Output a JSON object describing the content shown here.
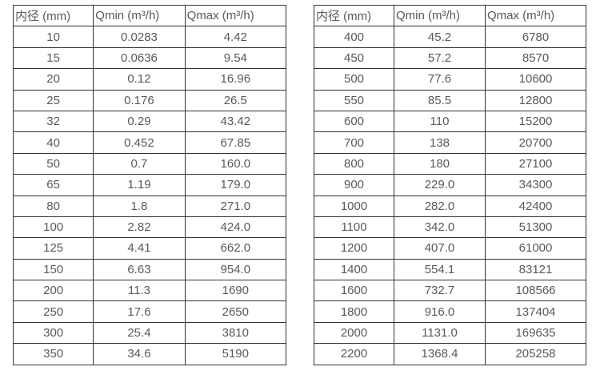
{
  "theme": {
    "background": "#ffffff",
    "border_color": "#333333",
    "text_color": "#595959"
  },
  "tables": [
    {
      "name": "small-diameters",
      "headers": [
        "内径 (mm)",
        "Qmin (m³/h)",
        "Qmax (m³/h)"
      ],
      "rows": [
        [
          "10",
          "0.0283",
          "4.42"
        ],
        [
          "15",
          "0.0636",
          "9.54"
        ],
        [
          "20",
          "0.12",
          "16.96"
        ],
        [
          "25",
          "0.176",
          "26.5"
        ],
        [
          "32",
          "0.29",
          "43.42"
        ],
        [
          "40",
          "0.452",
          "67.85"
        ],
        [
          "50",
          "0.7",
          "160.0"
        ],
        [
          "65",
          "1.19",
          "179.0"
        ],
        [
          "80",
          "1.8",
          "271.0"
        ],
        [
          "100",
          "2.82",
          "424.0"
        ],
        [
          "125",
          "4.41",
          "662.0"
        ],
        [
          "150",
          "6.63",
          "954.0"
        ],
        [
          "200",
          "11.3",
          "1690"
        ],
        [
          "250",
          "17.6",
          "2650"
        ],
        [
          "300",
          "25.4",
          "3810"
        ],
        [
          "350",
          "34.6",
          "5190"
        ]
      ]
    },
    {
      "name": "large-diameters",
      "headers": [
        "内径 (mm)",
        "Qmin (m³/h)",
        "Qmax (m³/h)"
      ],
      "rows": [
        [
          "400",
          "45.2",
          "6780"
        ],
        [
          "450",
          "57.2",
          "8570"
        ],
        [
          "500",
          "77.6",
          "10600"
        ],
        [
          "550",
          "85.5",
          "12800"
        ],
        [
          "600",
          "110",
          "15200"
        ],
        [
          "700",
          "138",
          "20700"
        ],
        [
          "800",
          "180",
          "27100"
        ],
        [
          "900",
          "229.0",
          "34300"
        ],
        [
          "1000",
          "282.0",
          "42400"
        ],
        [
          "1100",
          "342.0",
          "51300"
        ],
        [
          "1200",
          "407.0",
          "61000"
        ],
        [
          "1400",
          "554.1",
          "83121"
        ],
        [
          "1600",
          "732.7",
          "108566"
        ],
        [
          "1800",
          "916.0",
          "137404"
        ],
        [
          "2000",
          "1131.0",
          "169635"
        ],
        [
          "2200",
          "1368.4",
          "205258"
        ]
      ]
    }
  ]
}
